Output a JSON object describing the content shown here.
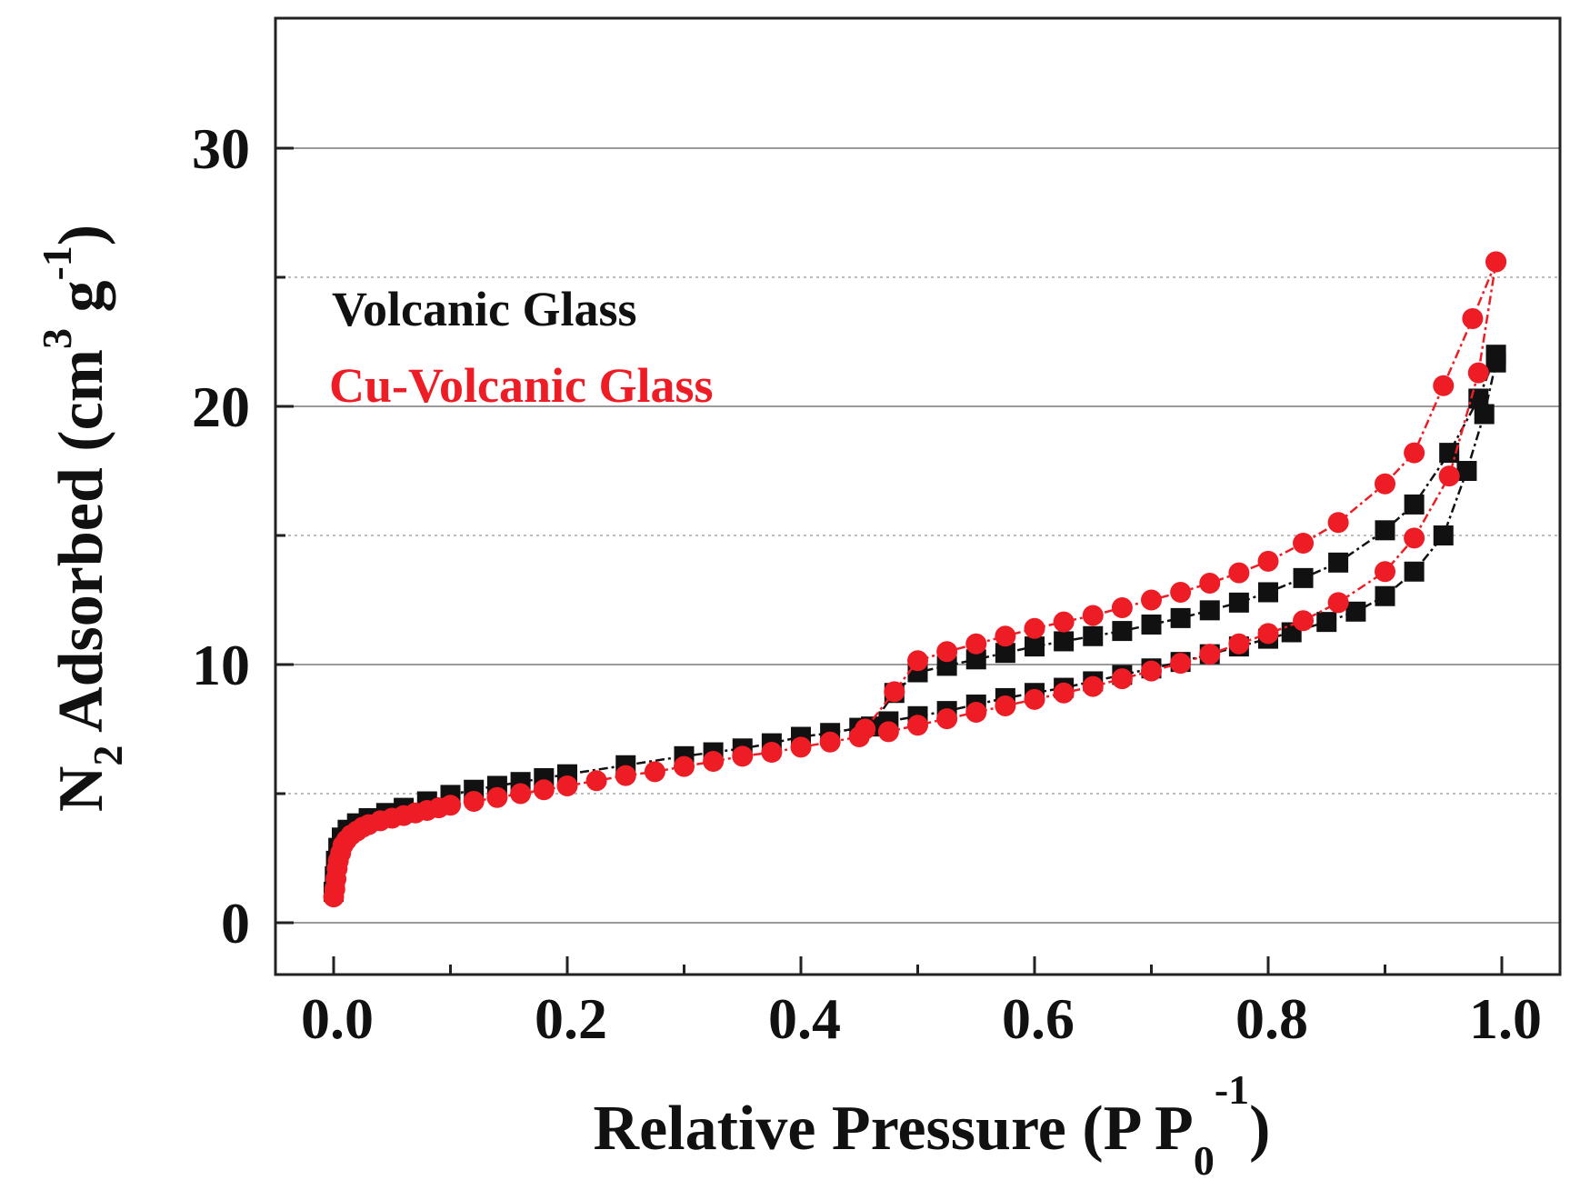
{
  "colors": {
    "series_black": "#111111",
    "series_red": "#ee1c24",
    "grid_major": "#9a9a9a",
    "grid_minor": "#bdbdbd",
    "axis": "#222222"
  },
  "chart_data": {
    "type": "scatter",
    "title": "",
    "xlabel": "Relative Pressure (P P",
    "xlabel_sub": "0",
    "xlabel_sup": "-1",
    "xlabel_close": ")",
    "ylabel": "N",
    "ylabel_sub": "2",
    "ylabel_mid": " Adsorbed (cm",
    "ylabel_sup": "3",
    "ylabel_mid2": " g",
    "ylabel_sup2": "-1",
    "ylabel_close": ")",
    "xlim": [
      -0.05,
      1.05
    ],
    "ylim": [
      -2,
      35
    ],
    "xticks": [
      {
        "value": 0.0,
        "label": "0.0"
      },
      {
        "value": 0.2,
        "label": "0.2"
      },
      {
        "value": 0.4,
        "label": "0.4"
      },
      {
        "value": 0.6,
        "label": "0.6"
      },
      {
        "value": 0.8,
        "label": "0.8"
      },
      {
        "value": 1.0,
        "label": "1.0"
      }
    ],
    "xminor": [
      0.1,
      0.3,
      0.5,
      0.7,
      0.9
    ],
    "yticks": [
      {
        "value": 0,
        "label": "0"
      },
      {
        "value": 10,
        "label": "10"
      },
      {
        "value": 20,
        "label": "20"
      },
      {
        "value": 30,
        "label": "30"
      }
    ],
    "yminor": [
      5,
      15,
      25
    ],
    "grid": true,
    "legend_position": "top-left",
    "legend": [
      {
        "label": "Volcanic Glass",
        "series": "Volcanic Glass"
      },
      {
        "label": "Cu-Volcanic Glass",
        "series": "Cu-Volcanic Glass"
      }
    ],
    "series": [
      {
        "name": "Volcanic Glass",
        "marker": "square",
        "color": "#111111",
        "adsorption": [
          [
            0.0,
            1.2
          ],
          [
            0.001,
            1.8
          ],
          [
            0.002,
            2.4
          ],
          [
            0.004,
            2.9
          ],
          [
            0.007,
            3.3
          ],
          [
            0.012,
            3.6
          ],
          [
            0.02,
            3.85
          ],
          [
            0.03,
            4.05
          ],
          [
            0.045,
            4.25
          ],
          [
            0.06,
            4.45
          ],
          [
            0.08,
            4.7
          ],
          [
            0.1,
            4.95
          ],
          [
            0.12,
            5.15
          ],
          [
            0.14,
            5.3
          ],
          [
            0.16,
            5.45
          ],
          [
            0.18,
            5.6
          ],
          [
            0.2,
            5.75
          ],
          [
            0.25,
            6.1
          ],
          [
            0.3,
            6.45
          ],
          [
            0.325,
            6.6
          ],
          [
            0.35,
            6.75
          ],
          [
            0.375,
            6.95
          ],
          [
            0.4,
            7.2
          ],
          [
            0.425,
            7.35
          ],
          [
            0.45,
            7.55
          ],
          [
            0.475,
            7.8
          ],
          [
            0.5,
            8.0
          ],
          [
            0.525,
            8.2
          ],
          [
            0.55,
            8.45
          ],
          [
            0.575,
            8.7
          ],
          [
            0.6,
            8.9
          ],
          [
            0.625,
            9.1
          ],
          [
            0.65,
            9.35
          ],
          [
            0.675,
            9.6
          ],
          [
            0.7,
            9.85
          ],
          [
            0.725,
            10.1
          ],
          [
            0.75,
            10.4
          ],
          [
            0.775,
            10.7
          ],
          [
            0.8,
            11.0
          ],
          [
            0.82,
            11.25
          ],
          [
            0.85,
            11.65
          ],
          [
            0.875,
            12.05
          ],
          [
            0.9,
            12.65
          ],
          [
            0.925,
            13.6
          ],
          [
            0.95,
            15.0
          ],
          [
            0.97,
            17.5
          ],
          [
            0.985,
            19.7
          ],
          [
            0.995,
            21.7
          ]
        ],
        "desorption": [
          [
            0.995,
            22.0
          ],
          [
            0.98,
            20.3
          ],
          [
            0.955,
            18.2
          ],
          [
            0.925,
            16.2
          ],
          [
            0.9,
            15.2
          ],
          [
            0.86,
            13.95
          ],
          [
            0.83,
            13.35
          ],
          [
            0.8,
            12.8
          ],
          [
            0.775,
            12.4
          ],
          [
            0.75,
            12.1
          ],
          [
            0.725,
            11.8
          ],
          [
            0.7,
            11.55
          ],
          [
            0.675,
            11.3
          ],
          [
            0.65,
            11.1
          ],
          [
            0.625,
            10.9
          ],
          [
            0.6,
            10.7
          ],
          [
            0.575,
            10.45
          ],
          [
            0.55,
            10.2
          ],
          [
            0.525,
            9.95
          ],
          [
            0.5,
            9.7
          ],
          [
            0.48,
            8.9
          ],
          [
            0.46,
            7.6
          ]
        ]
      },
      {
        "name": "Cu-Volcanic Glass",
        "marker": "circle",
        "color": "#ee1c24",
        "adsorption": [
          [
            0.0,
            1.0
          ],
          [
            0.001,
            1.3
          ],
          [
            0.002,
            1.7
          ],
          [
            0.003,
            2.1
          ],
          [
            0.004,
            2.4
          ],
          [
            0.006,
            2.7
          ],
          [
            0.008,
            3.0
          ],
          [
            0.011,
            3.2
          ],
          [
            0.015,
            3.4
          ],
          [
            0.02,
            3.55
          ],
          [
            0.025,
            3.7
          ],
          [
            0.03,
            3.8
          ],
          [
            0.04,
            3.95
          ],
          [
            0.05,
            4.05
          ],
          [
            0.06,
            4.15
          ],
          [
            0.07,
            4.25
          ],
          [
            0.08,
            4.35
          ],
          [
            0.09,
            4.45
          ],
          [
            0.1,
            4.55
          ],
          [
            0.12,
            4.7
          ],
          [
            0.14,
            4.85
          ],
          [
            0.16,
            5.0
          ],
          [
            0.18,
            5.15
          ],
          [
            0.2,
            5.3
          ],
          [
            0.225,
            5.5
          ],
          [
            0.25,
            5.7
          ],
          [
            0.275,
            5.85
          ],
          [
            0.3,
            6.05
          ],
          [
            0.325,
            6.25
          ],
          [
            0.35,
            6.45
          ],
          [
            0.375,
            6.6
          ],
          [
            0.4,
            6.8
          ],
          [
            0.425,
            7.0
          ],
          [
            0.45,
            7.2
          ],
          [
            0.475,
            7.4
          ],
          [
            0.5,
            7.65
          ],
          [
            0.525,
            7.9
          ],
          [
            0.55,
            8.15
          ],
          [
            0.575,
            8.4
          ],
          [
            0.6,
            8.65
          ],
          [
            0.625,
            8.9
          ],
          [
            0.65,
            9.15
          ],
          [
            0.675,
            9.45
          ],
          [
            0.7,
            9.75
          ],
          [
            0.725,
            10.05
          ],
          [
            0.75,
            10.4
          ],
          [
            0.775,
            10.8
          ],
          [
            0.8,
            11.2
          ],
          [
            0.83,
            11.7
          ],
          [
            0.86,
            12.4
          ],
          [
            0.9,
            13.6
          ],
          [
            0.925,
            14.9
          ],
          [
            0.955,
            17.3
          ],
          [
            0.98,
            21.3
          ],
          [
            0.995,
            25.6
          ]
        ],
        "desorption": [
          [
            0.995,
            25.6
          ],
          [
            0.975,
            23.4
          ],
          [
            0.95,
            20.8
          ],
          [
            0.925,
            18.2
          ],
          [
            0.9,
            17.0
          ],
          [
            0.86,
            15.5
          ],
          [
            0.83,
            14.7
          ],
          [
            0.8,
            14.0
          ],
          [
            0.775,
            13.55
          ],
          [
            0.75,
            13.15
          ],
          [
            0.725,
            12.8
          ],
          [
            0.7,
            12.5
          ],
          [
            0.675,
            12.2
          ],
          [
            0.65,
            11.9
          ],
          [
            0.625,
            11.65
          ],
          [
            0.6,
            11.4
          ],
          [
            0.575,
            11.1
          ],
          [
            0.55,
            10.8
          ],
          [
            0.525,
            10.5
          ],
          [
            0.5,
            10.15
          ],
          [
            0.48,
            8.95
          ],
          [
            0.455,
            7.5
          ]
        ]
      }
    ]
  }
}
